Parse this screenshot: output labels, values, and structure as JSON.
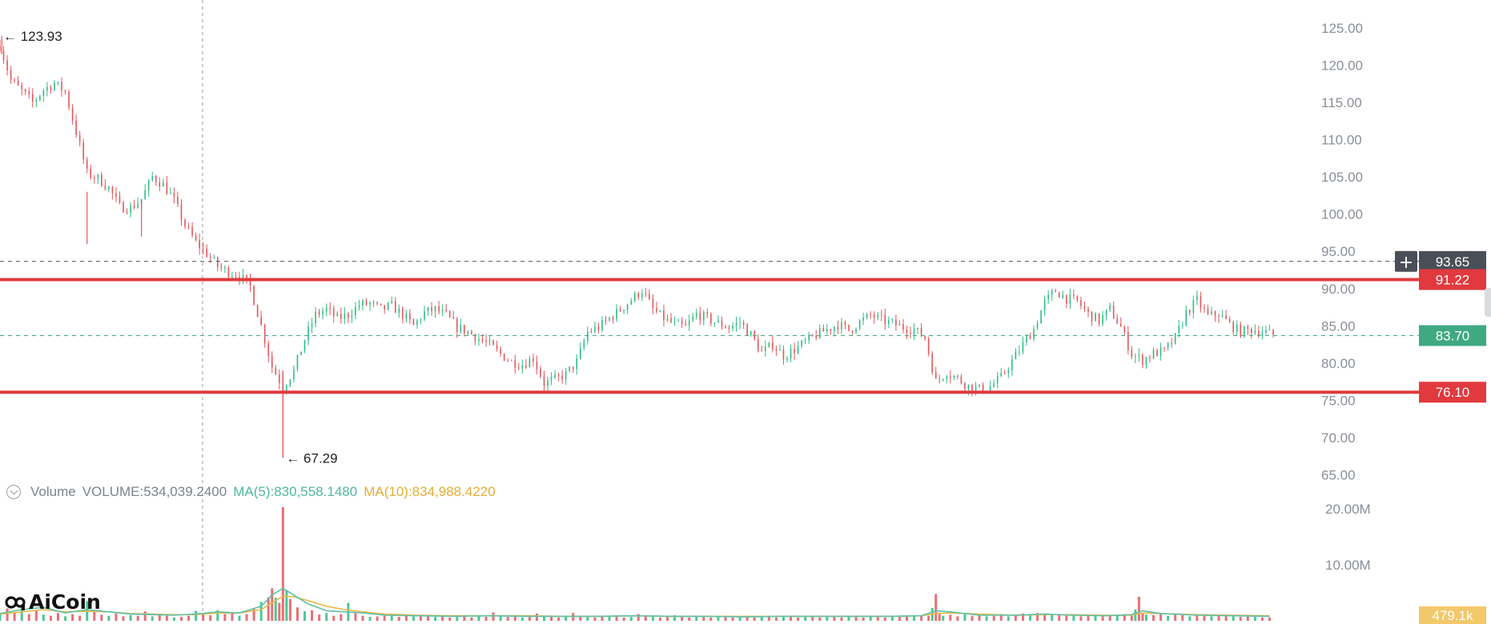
{
  "chart_data": {
    "type": "candlestick",
    "price_axis": {
      "ticks": [
        "125.00",
        "120.00",
        "115.00",
        "110.00",
        "105.00",
        "100.00",
        "95.00",
        "90.00",
        "85.00",
        "80.00",
        "75.00",
        "70.00",
        "65.00"
      ],
      "range": [
        62.7,
        126.6
      ]
    },
    "volume_axis": {
      "ticks": [
        "20.00M",
        "10.00M"
      ],
      "max": 23000000
    },
    "grid": false,
    "annotations": {
      "high_label": "123.93",
      "low_label": "67.29",
      "high_value": 123.93,
      "low_value": 67.29
    },
    "horizontal_levels": [
      {
        "label": "93.65",
        "value": 93.65,
        "style": "dashed",
        "color": "#4a4f57"
      },
      {
        "label": "91.22",
        "value": 91.22,
        "style": "solid",
        "color": "#e03a3e"
      },
      {
        "label": "83.70",
        "value": 83.7,
        "style": "dashed",
        "color": "#3fa983"
      },
      {
        "label": "76.10",
        "value": 76.1,
        "style": "solid",
        "color": "#e03a3e"
      }
    ],
    "close_path": [
      [
        0,
        122.6
      ],
      [
        6,
        118
      ],
      [
        12,
        116.5
      ],
      [
        18,
        115
      ],
      [
        24,
        116.7
      ],
      [
        30,
        117.6
      ],
      [
        36,
        116.4
      ],
      [
        42,
        111
      ],
      [
        48,
        105.5
      ],
      [
        54,
        104.8
      ],
      [
        60,
        103.5
      ],
      [
        66,
        101
      ],
      [
        72,
        100.8
      ],
      [
        78,
        102
      ],
      [
        84,
        105
      ],
      [
        90,
        104
      ],
      [
        96,
        101.8
      ],
      [
        102,
        98.5
      ],
      [
        108,
        96.2
      ],
      [
        114,
        94.7
      ],
      [
        120,
        93
      ],
      [
        126,
        92.2
      ],
      [
        132,
        91.8
      ],
      [
        138,
        90.2
      ],
      [
        144,
        85
      ],
      [
        150,
        79.5
      ],
      [
        156,
        76.8
      ],
      [
        162,
        79
      ],
      [
        168,
        83.2
      ],
      [
        174,
        86.5
      ],
      [
        180,
        87.2
      ],
      [
        186,
        86
      ],
      [
        192,
        86.5
      ],
      [
        198,
        87.8
      ],
      [
        204,
        88
      ],
      [
        210,
        87.2
      ],
      [
        216,
        87.7
      ],
      [
        222,
        86.5
      ],
      [
        228,
        85
      ],
      [
        234,
        86.8
      ],
      [
        240,
        87.2
      ],
      [
        246,
        86.4
      ],
      [
        252,
        84.8
      ],
      [
        258,
        84.2
      ],
      [
        264,
        83.3
      ],
      [
        270,
        82.4
      ],
      [
        276,
        81.2
      ],
      [
        282,
        80.2
      ],
      [
        288,
        79.8
      ],
      [
        294,
        80.7
      ],
      [
        300,
        77.3
      ],
      [
        306,
        77.8
      ],
      [
        312,
        78.5
      ],
      [
        318,
        80.2
      ],
      [
        324,
        84.2
      ],
      [
        330,
        84.8
      ],
      [
        336,
        86
      ],
      [
        342,
        87.2
      ],
      [
        348,
        88.5
      ],
      [
        354,
        89.8
      ],
      [
        360,
        87.2
      ],
      [
        366,
        86
      ],
      [
        372,
        85.2
      ],
      [
        378,
        84.8
      ],
      [
        384,
        86.6
      ],
      [
        390,
        86
      ],
      [
        396,
        85.3
      ],
      [
        402,
        84.8
      ],
      [
        408,
        85.5
      ],
      [
        414,
        83.8
      ],
      [
        420,
        81.4
      ],
      [
        426,
        82.5
      ],
      [
        432,
        81
      ],
      [
        438,
        81.8
      ],
      [
        444,
        82.8
      ],
      [
        450,
        83.8
      ],
      [
        456,
        84.5
      ],
      [
        462,
        85.2
      ],
      [
        468,
        84.4
      ],
      [
        474,
        85.5
      ],
      [
        480,
        86.4
      ],
      [
        486,
        85.8
      ],
      [
        492,
        85.3
      ],
      [
        498,
        84.8
      ],
      [
        504,
        84.5
      ],
      [
        510,
        83.4
      ],
      [
        516,
        77.5
      ],
      [
        522,
        78.8
      ],
      [
        528,
        77.9
      ],
      [
        534,
        76.9
      ],
      [
        540,
        76.5
      ],
      [
        546,
        76.8
      ],
      [
        552,
        78.1
      ],
      [
        558,
        80.3
      ],
      [
        564,
        82.5
      ],
      [
        570,
        84.6
      ],
      [
        576,
        88.2
      ],
      [
        582,
        89.7
      ],
      [
        588,
        88.7
      ],
      [
        594,
        88.3
      ],
      [
        600,
        86.6
      ],
      [
        606,
        85.7
      ],
      [
        612,
        87.2
      ],
      [
        618,
        84.8
      ],
      [
        624,
        81.2
      ],
      [
        630,
        80.4
      ],
      [
        636,
        81.3
      ],
      [
        642,
        81.6
      ],
      [
        648,
        83.4
      ],
      [
        654,
        86.8
      ],
      [
        660,
        88.4
      ],
      [
        666,
        86.3
      ],
      [
        672,
        86.6
      ],
      [
        678,
        85.2
      ],
      [
        684,
        84.2
      ],
      [
        690,
        84.5
      ],
      [
        696,
        84.3
      ],
      [
        702,
        83.8
      ]
    ],
    "volume_bars": [
      [
        0,
        1.3
      ],
      [
        4,
        2.2
      ],
      [
        8,
        1.5
      ],
      [
        12,
        2.4
      ],
      [
        16,
        1.2
      ],
      [
        20,
        1.8
      ],
      [
        24,
        1.1
      ],
      [
        28,
        0.9
      ],
      [
        32,
        1.4
      ],
      [
        36,
        0.8
      ],
      [
        40,
        1.2
      ],
      [
        44,
        0.9
      ],
      [
        48,
        3.5
      ],
      [
        52,
        1.6
      ],
      [
        56,
        1.1
      ],
      [
        60,
        0.9
      ],
      [
        64,
        1.3
      ],
      [
        68,
        0.8
      ],
      [
        72,
        1.0
      ],
      [
        76,
        0.9
      ],
      [
        80,
        1.7
      ],
      [
        84,
        0.8
      ],
      [
        88,
        1.1
      ],
      [
        92,
        0.9
      ],
      [
        96,
        0.6
      ],
      [
        100,
        0.7
      ],
      [
        104,
        0.9
      ],
      [
        108,
        1.8
      ],
      [
        112,
        1.4
      ],
      [
        116,
        1.0
      ],
      [
        120,
        1.9
      ],
      [
        124,
        1.2
      ],
      [
        128,
        1.5
      ],
      [
        132,
        0.9
      ],
      [
        136,
        1.2
      ],
      [
        140,
        2.1
      ],
      [
        144,
        3.4
      ],
      [
        148,
        4.2
      ],
      [
        150,
        5.8
      ],
      [
        152,
        4.1
      ],
      [
        154,
        3.2
      ],
      [
        156,
        20.3
      ],
      [
        158,
        5.5
      ],
      [
        160,
        3.9
      ],
      [
        164,
        2.4
      ],
      [
        168,
        1.7
      ],
      [
        172,
        1.9
      ],
      [
        176,
        1.1
      ],
      [
        180,
        1.4
      ],
      [
        184,
        0.9
      ],
      [
        188,
        1.2
      ],
      [
        192,
        3.2
      ],
      [
        196,
        1.4
      ],
      [
        200,
        0.9
      ],
      [
        204,
        0.7
      ],
      [
        208,
        0.8
      ],
      [
        212,
        1.0
      ],
      [
        216,
        0.9
      ],
      [
        220,
        0.7
      ],
      [
        224,
        1.0
      ],
      [
        228,
        0.8
      ],
      [
        232,
        1.1
      ],
      [
        236,
        0.9
      ],
      [
        240,
        0.7
      ],
      [
        244,
        0.8
      ],
      [
        248,
        0.6
      ],
      [
        252,
        0.7
      ],
      [
        256,
        0.9
      ],
      [
        260,
        0.6
      ],
      [
        264,
        0.8
      ],
      [
        268,
        0.7
      ],
      [
        272,
        1.5
      ],
      [
        276,
        0.9
      ],
      [
        280,
        0.7
      ],
      [
        284,
        0.8
      ],
      [
        288,
        0.6
      ],
      [
        292,
        0.7
      ],
      [
        296,
        1.3
      ],
      [
        300,
        0.9
      ],
      [
        304,
        0.8
      ],
      [
        308,
        0.6
      ],
      [
        312,
        0.7
      ],
      [
        316,
        1.4
      ],
      [
        320,
        0.8
      ],
      [
        324,
        0.7
      ],
      [
        328,
        0.6
      ],
      [
        332,
        0.9
      ],
      [
        336,
        0.7
      ],
      [
        340,
        0.8
      ],
      [
        344,
        0.6
      ],
      [
        348,
        0.7
      ],
      [
        352,
        1.2
      ],
      [
        356,
        0.9
      ],
      [
        360,
        0.7
      ],
      [
        364,
        0.6
      ],
      [
        368,
        0.8
      ],
      [
        372,
        1.0
      ],
      [
        376,
        0.7
      ],
      [
        380,
        0.6
      ],
      [
        384,
        0.9
      ],
      [
        388,
        0.8
      ],
      [
        392,
        0.6
      ],
      [
        396,
        0.7
      ],
      [
        400,
        0.9
      ],
      [
        404,
        0.6
      ],
      [
        408,
        0.7
      ],
      [
        412,
        0.8
      ],
      [
        416,
        0.6
      ],
      [
        420,
        0.7
      ],
      [
        424,
        0.9
      ],
      [
        428,
        0.6
      ],
      [
        432,
        0.7
      ],
      [
        436,
        0.8
      ],
      [
        440,
        0.6
      ],
      [
        444,
        0.7
      ],
      [
        448,
        0.8
      ],
      [
        452,
        0.6
      ],
      [
        456,
        0.9
      ],
      [
        460,
        0.7
      ],
      [
        464,
        0.6
      ],
      [
        468,
        0.8
      ],
      [
        472,
        0.7
      ],
      [
        476,
        0.6
      ],
      [
        480,
        0.9
      ],
      [
        484,
        0.7
      ],
      [
        488,
        0.6
      ],
      [
        492,
        0.8
      ],
      [
        496,
        0.7
      ],
      [
        500,
        0.9
      ],
      [
        504,
        0.8
      ],
      [
        508,
        1.0
      ],
      [
        512,
        0.9
      ],
      [
        514,
        2.3
      ],
      [
        516,
        4.8
      ],
      [
        518,
        1.2
      ],
      [
        520,
        0.9
      ],
      [
        524,
        1.1
      ],
      [
        528,
        0.8
      ],
      [
        532,
        1.2
      ],
      [
        536,
        0.9
      ],
      [
        540,
        1.0
      ],
      [
        544,
        0.8
      ],
      [
        548,
        0.9
      ],
      [
        552,
        1.1
      ],
      [
        556,
        0.8
      ],
      [
        560,
        1.0
      ],
      [
        564,
        1.3
      ],
      [
        568,
        1.1
      ],
      [
        572,
        1.4
      ],
      [
        576,
        1.0
      ],
      [
        580,
        1.2
      ],
      [
        584,
        1.1
      ],
      [
        588,
        0.9
      ],
      [
        592,
        1.0
      ],
      [
        596,
        0.8
      ],
      [
        600,
        0.9
      ],
      [
        604,
        1.0
      ],
      [
        608,
        0.8
      ],
      [
        612,
        0.9
      ],
      [
        616,
        1.0
      ],
      [
        620,
        1.2
      ],
      [
        624,
        0.9
      ],
      [
        626,
        2.0
      ],
      [
        628,
        4.3
      ],
      [
        630,
        1.5
      ],
      [
        632,
        1.1
      ],
      [
        636,
        1.0
      ],
      [
        640,
        1.2
      ],
      [
        644,
        0.9
      ],
      [
        648,
        1.1
      ],
      [
        652,
        1.0
      ],
      [
        656,
        0.8
      ],
      [
        660,
        1.0
      ],
      [
        664,
        0.9
      ],
      [
        668,
        0.8
      ],
      [
        672,
        0.9
      ],
      [
        676,
        1.0
      ],
      [
        680,
        0.8
      ],
      [
        684,
        0.7
      ],
      [
        688,
        0.8
      ],
      [
        692,
        0.7
      ],
      [
        696,
        0.6
      ],
      [
        700,
        0.6
      ]
    ],
    "volume_ma5": [
      [
        0,
        1.3
      ],
      [
        12,
        2.0
      ],
      [
        24,
        2.4
      ],
      [
        36,
        1.4
      ],
      [
        48,
        2.0
      ],
      [
        60,
        1.6
      ],
      [
        72,
        1.2
      ],
      [
        84,
        1.1
      ],
      [
        96,
        1.0
      ],
      [
        108,
        1.2
      ],
      [
        120,
        1.6
      ],
      [
        132,
        1.4
      ],
      [
        144,
        2.6
      ],
      [
        150,
        4.6
      ],
      [
        156,
        5.8
      ],
      [
        162,
        4.6
      ],
      [
        170,
        3.0
      ],
      [
        180,
        1.8
      ],
      [
        190,
        1.6
      ],
      [
        200,
        1.4
      ],
      [
        212,
        1.0
      ],
      [
        230,
        0.9
      ],
      [
        250,
        0.8
      ],
      [
        270,
        0.9
      ],
      [
        290,
        0.8
      ],
      [
        310,
        0.8
      ],
      [
        330,
        0.8
      ],
      [
        350,
        0.9
      ],
      [
        370,
        0.8
      ],
      [
        390,
        0.8
      ],
      [
        410,
        0.7
      ],
      [
        430,
        0.8
      ],
      [
        450,
        0.8
      ],
      [
        470,
        0.8
      ],
      [
        490,
        0.8
      ],
      [
        508,
        0.9
      ],
      [
        516,
        1.8
      ],
      [
        524,
        1.6
      ],
      [
        540,
        1.0
      ],
      [
        560,
        1.0
      ],
      [
        576,
        1.2
      ],
      [
        590,
        1.0
      ],
      [
        610,
        0.9
      ],
      [
        624,
        1.1
      ],
      [
        630,
        1.8
      ],
      [
        640,
        1.3
      ],
      [
        660,
        1.0
      ],
      [
        680,
        0.9
      ],
      [
        700,
        0.8
      ]
    ],
    "volume_ma10": [
      [
        0,
        1.2
      ],
      [
        12,
        1.6
      ],
      [
        24,
        2.0
      ],
      [
        36,
        1.6
      ],
      [
        48,
        1.7
      ],
      [
        60,
        1.6
      ],
      [
        72,
        1.3
      ],
      [
        84,
        1.2
      ],
      [
        96,
        1.1
      ],
      [
        108,
        1.1
      ],
      [
        120,
        1.4
      ],
      [
        132,
        1.4
      ],
      [
        144,
        2.0
      ],
      [
        150,
        3.2
      ],
      [
        156,
        4.4
      ],
      [
        162,
        4.3
      ],
      [
        170,
        3.6
      ],
      [
        180,
        2.6
      ],
      [
        190,
        2.0
      ],
      [
        200,
        1.6
      ],
      [
        212,
        1.2
      ],
      [
        230,
        1.0
      ],
      [
        250,
        0.9
      ],
      [
        270,
        0.9
      ],
      [
        290,
        0.9
      ],
      [
        310,
        0.8
      ],
      [
        330,
        0.8
      ],
      [
        350,
        0.9
      ],
      [
        370,
        0.8
      ],
      [
        390,
        0.8
      ],
      [
        410,
        0.8
      ],
      [
        430,
        0.8
      ],
      [
        450,
        0.8
      ],
      [
        470,
        0.8
      ],
      [
        490,
        0.8
      ],
      [
        508,
        0.9
      ],
      [
        516,
        1.3
      ],
      [
        524,
        1.4
      ],
      [
        540,
        1.2
      ],
      [
        560,
        1.0
      ],
      [
        576,
        1.1
      ],
      [
        590,
        1.1
      ],
      [
        610,
        1.0
      ],
      [
        624,
        1.0
      ],
      [
        630,
        1.4
      ],
      [
        640,
        1.3
      ],
      [
        660,
        1.1
      ],
      [
        680,
        1.0
      ],
      [
        700,
        0.9
      ]
    ]
  },
  "volume_legend": {
    "title": "Volume",
    "volume_text": "VOLUME:534,039.2400",
    "ma5_text": "MA(5):830,558.1480",
    "ma10_text": "MA(10):834,988.4220"
  },
  "current_volume_label": "479.1k",
  "crosshair_button": "+",
  "logo_text": "AiCoin",
  "colors": {
    "up": "#2ebd85",
    "down": "#e4575b",
    "ma5": "#5fc0a8",
    "ma10": "#e8b94a",
    "axis_text": "#8a8f98",
    "level_red": "#e03a3e",
    "level_green": "#3fa983",
    "level_dark": "#4a4f57"
  }
}
